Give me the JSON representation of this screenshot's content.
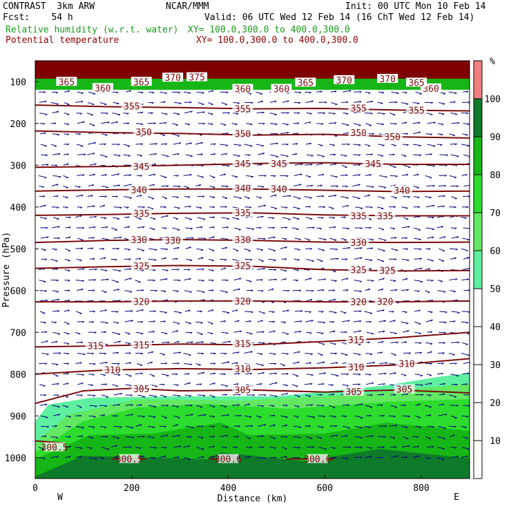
{
  "header": {
    "line1_left": "CONTRAST  3km ARW",
    "line1_mid": "NCAR/MMM",
    "line1_right": "Init: 00 UTC Mon 10 Feb 14",
    "line2_left": "Fcst:    54 h",
    "line2_right": "Valid: 06 UTC Wed 12 Feb 14 (16 ChT Wed 12 Feb 14)",
    "field1": "Relative humidity (w.r.t. water)",
    "field1_xy": "XY= 100.0,300.0 to 400.0,300.0",
    "field2": "Potential temperature",
    "field2_xy": "XY= 100.0,300.0 to 400.0,300.0"
  },
  "colors": {
    "theta": "#7a0a0a",
    "wind": "#000080",
    "rh_50": "#5ef0a0",
    "rh_60": "#62e862",
    "rh_70": "#2ddc2d",
    "rh_80": "#16b616",
    "rh_90": "#0f7a2a",
    "rh_100": "#7e0000",
    "rh_top": "#f08080"
  },
  "chart_data": {
    "type": "cross-section",
    "xlabel": "Distance (km)",
    "ylabel": "Pressure (hPa)",
    "xlim": [
      0,
      900
    ],
    "ylim": [
      1050,
      50
    ],
    "x_ticks": [
      0,
      200,
      400,
      600,
      800
    ],
    "y_ticks": [
      100,
      200,
      300,
      400,
      500,
      600,
      700,
      800,
      900,
      1000
    ],
    "x_end_labels": {
      "left": "W",
      "right": "E"
    },
    "colorbar": {
      "unit": "%",
      "ticks": [
        10,
        20,
        30,
        40,
        50,
        60,
        70,
        80,
        90,
        100
      ],
      "range": [
        0,
        110
      ],
      "bands": [
        {
          "from": 0,
          "to": 50,
          "color": "#ffffff"
        },
        {
          "from": 50,
          "to": 60,
          "color": "#5ef0a0"
        },
        {
          "from": 60,
          "to": 70,
          "color": "#62e862"
        },
        {
          "from": 70,
          "to": 80,
          "color": "#2ddc2d"
        },
        {
          "from": 80,
          "to": 90,
          "color": "#16b616"
        },
        {
          "from": 90,
          "to": 100,
          "color": "#0f7a2a"
        },
        {
          "from": 100,
          "to": 110,
          "color": "#f08080"
        }
      ]
    },
    "theta_contours": [
      {
        "value": 355,
        "p": [
          [
            0,
            156
          ],
          [
            150,
            160
          ],
          [
            300,
            162
          ],
          [
            450,
            165
          ],
          [
            600,
            164
          ],
          [
            750,
            168
          ],
          [
            900,
            170
          ]
        ],
        "labels": [
          [
            200,
            158
          ],
          [
            430,
            165
          ],
          [
            670,
            163
          ],
          [
            790,
            168
          ]
        ]
      },
      {
        "value": 350,
        "p": [
          [
            0,
            218
          ],
          [
            150,
            222
          ],
          [
            300,
            224
          ],
          [
            450,
            228
          ],
          [
            600,
            226
          ],
          [
            750,
            232
          ],
          [
            900,
            235
          ]
        ],
        "labels": [
          [
            225,
            220
          ],
          [
            430,
            224
          ],
          [
            670,
            222
          ],
          [
            740,
            232
          ]
        ]
      },
      {
        "value": 345,
        "p": [
          [
            0,
            305
          ],
          [
            150,
            303
          ],
          [
            300,
            300
          ],
          [
            450,
            296
          ],
          [
            600,
            294
          ],
          [
            750,
            298
          ],
          [
            900,
            298
          ]
        ],
        "labels": [
          [
            220,
            303
          ],
          [
            430,
            296
          ],
          [
            505,
            296
          ],
          [
            700,
            296
          ]
        ]
      },
      {
        "value": 340,
        "p": [
          [
            0,
            362
          ],
          [
            150,
            359
          ],
          [
            300,
            357
          ],
          [
            450,
            357
          ],
          [
            600,
            360
          ],
          [
            750,
            363
          ],
          [
            900,
            362
          ]
        ],
        "labels": [
          [
            215,
            359
          ],
          [
            430,
            355
          ],
          [
            505,
            357
          ],
          [
            760,
            360
          ]
        ]
      },
      {
        "value": 335,
        "p": [
          [
            0,
            420
          ],
          [
            150,
            418
          ],
          [
            300,
            415
          ],
          [
            450,
            414
          ],
          [
            600,
            419
          ],
          [
            750,
            421
          ],
          [
            900,
            421
          ]
        ],
        "labels": [
          [
            220,
            415
          ],
          [
            430,
            414
          ],
          [
            670,
            421
          ],
          [
            725,
            421
          ]
        ]
      },
      {
        "value": 330,
        "p": [
          [
            0,
            485
          ],
          [
            150,
            480
          ],
          [
            300,
            478
          ],
          [
            450,
            480
          ],
          [
            600,
            484
          ],
          [
            750,
            485
          ],
          [
            900,
            484
          ]
        ],
        "labels": [
          [
            215,
            478
          ],
          [
            285,
            480
          ],
          [
            430,
            478
          ],
          [
            670,
            485
          ]
        ]
      },
      {
        "value": 325,
        "p": [
          [
            0,
            547
          ],
          [
            150,
            543
          ],
          [
            300,
            540
          ],
          [
            450,
            542
          ],
          [
            600,
            550
          ],
          [
            750,
            553
          ],
          [
            900,
            552
          ]
        ],
        "labels": [
          [
            220,
            541
          ],
          [
            430,
            540
          ],
          [
            670,
            550
          ],
          [
            730,
            552
          ]
        ]
      },
      {
        "value": 320,
        "p": [
          [
            0,
            627
          ],
          [
            150,
            627
          ],
          [
            300,
            625
          ],
          [
            450,
            625
          ],
          [
            600,
            627
          ],
          [
            750,
            627
          ],
          [
            900,
            625
          ]
        ],
        "labels": [
          [
            220,
            626
          ],
          [
            430,
            625
          ],
          [
            670,
            627
          ],
          [
            725,
            626
          ]
        ]
      },
      {
        "value": 315,
        "p": [
          [
            0,
            735
          ],
          [
            150,
            732
          ],
          [
            300,
            728
          ],
          [
            450,
            730
          ],
          [
            600,
            722
          ],
          [
            750,
            713
          ],
          [
            900,
            700
          ]
        ],
        "labels": [
          [
            125,
            732
          ],
          [
            220,
            730
          ],
          [
            430,
            727
          ],
          [
            665,
            718
          ]
        ]
      },
      {
        "value": 310,
        "p": [
          [
            0,
            800
          ],
          [
            150,
            790
          ],
          [
            300,
            787
          ],
          [
            450,
            789
          ],
          [
            600,
            785
          ],
          [
            750,
            778
          ],
          [
            900,
            763
          ]
        ],
        "labels": [
          [
            160,
            790
          ],
          [
            430,
            787
          ],
          [
            665,
            783
          ],
          [
            770,
            775
          ]
        ]
      },
      {
        "value": 305,
        "p": [
          [
            0,
            870
          ],
          [
            100,
            840
          ],
          [
            200,
            834
          ],
          [
            300,
            840
          ],
          [
            450,
            838
          ],
          [
            600,
            843
          ],
          [
            750,
            838
          ],
          [
            900,
            845
          ]
        ],
        "labels": [
          [
            220,
            835
          ],
          [
            430,
            838
          ],
          [
            660,
            842
          ],
          [
            765,
            836
          ]
        ]
      },
      {
        "value": 300.5,
        "p": [
          [
            0,
            960
          ],
          [
            60,
            965
          ]
        ],
        "labels": [
          [
            40,
            975
          ]
        ]
      },
      {
        "value": 300.5,
        "p": [
          [
            160,
            1003
          ],
          [
            230,
            1003
          ]
        ],
        "labels": [
          [
            195,
            1003
          ]
        ]
      },
      {
        "value": 300.6,
        "p": [
          [
            360,
            1003
          ],
          [
            420,
            1003
          ]
        ],
        "labels": [
          [
            400,
            1003
          ]
        ]
      },
      {
        "value": 300.6,
        "p": [
          [
            520,
            1003
          ],
          [
            620,
            1003
          ]
        ],
        "labels": [
          [
            585,
            1003
          ]
        ]
      }
    ],
    "top_contours": [
      {
        "value": 360,
        "labels": [
          [
            140,
            115
          ],
          [
            430,
            117
          ],
          [
            510,
            117
          ],
          [
            820,
            116
          ]
        ]
      },
      {
        "value": 365,
        "labels": [
          [
            65,
            100
          ],
          [
            220,
            100
          ],
          [
            560,
            102
          ],
          [
            790,
            102
          ]
        ]
      },
      {
        "value": 370,
        "labels": [
          [
            285,
            90
          ],
          [
            640,
            96
          ],
          [
            730,
            93
          ]
        ]
      },
      {
        "value": 375,
        "labels": [
          [
            335,
            89
          ]
        ]
      }
    ]
  }
}
